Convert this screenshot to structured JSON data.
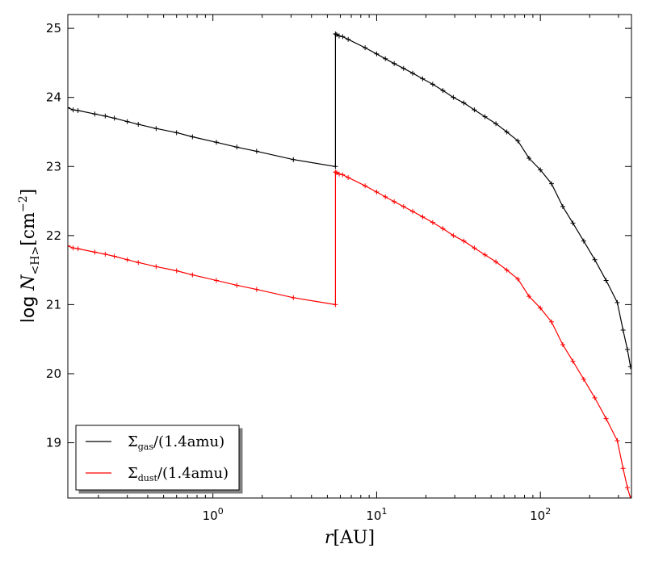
{
  "chart_data": {
    "type": "line",
    "x_scale": "log",
    "xlim": [
      0.13,
      360
    ],
    "ylim": [
      18.2,
      25.2
    ],
    "grid": false,
    "legend_position": "lower-left",
    "xlabel": {
      "symbol": "r",
      "unit": "[AU]"
    },
    "ylabel": {
      "prefix": "log",
      "symbol": "N",
      "subscript": "<H>",
      "unit": "[cm",
      "exponent": "−2",
      "close": "]"
    },
    "x_ticks": [
      {
        "value": 1,
        "base": "10",
        "exp": "0"
      },
      {
        "value": 10,
        "base": "10",
        "exp": "1"
      },
      {
        "value": 100,
        "base": "10",
        "exp": "2"
      }
    ],
    "y_ticks": [
      {
        "value": 19,
        "label": "19"
      },
      {
        "value": 20,
        "label": "20"
      },
      {
        "value": 21,
        "label": "21"
      },
      {
        "value": 22,
        "label": "22"
      },
      {
        "value": 23,
        "label": "23"
      },
      {
        "value": 24,
        "label": "24"
      },
      {
        "value": 25,
        "label": "25"
      }
    ],
    "series": [
      {
        "name": "Σgas/(1.4amu)",
        "legend": {
          "symbol": "Σ",
          "sub": "gas",
          "rest": "/(1.4amu)"
        },
        "color": "#000000",
        "x": [
          0.13,
          0.14,
          0.15,
          0.19,
          0.22,
          0.25,
          0.3,
          0.35,
          0.45,
          0.6,
          0.75,
          1.05,
          1.4,
          1.85,
          3.1,
          5.6,
          5.6,
          5.7,
          5.9,
          6.2,
          6.7,
          8.5,
          10,
          11.3,
          12.8,
          14.6,
          16.6,
          19.1,
          22,
          25.4,
          29.4,
          34.1,
          39.5,
          45.9,
          53.5,
          62.4,
          72.9,
          85.2,
          100,
          117,
          137,
          158,
          184,
          215,
          252,
          295,
          320,
          340,
          355
        ],
        "y": [
          23.85,
          23.82,
          23.81,
          23.76,
          23.73,
          23.7,
          23.65,
          23.61,
          23.55,
          23.49,
          23.43,
          23.35,
          23.28,
          23.22,
          23.1,
          23.0,
          24.92,
          24.91,
          24.89,
          24.88,
          24.84,
          24.72,
          24.63,
          24.56,
          24.49,
          24.42,
          24.35,
          24.27,
          24.19,
          24.1,
          24.0,
          23.92,
          23.82,
          23.72,
          23.62,
          23.5,
          23.37,
          23.12,
          22.95,
          22.75,
          22.42,
          22.18,
          21.92,
          21.65,
          21.35,
          21.03,
          20.63,
          20.35,
          20.1
        ]
      },
      {
        "name": "Σdust/(1.4amu)",
        "legend": {
          "symbol": "Σ",
          "sub": "dust",
          "rest": "/(1.4amu)"
        },
        "color": "#ff0000",
        "x": [
          0.13,
          0.14,
          0.15,
          0.19,
          0.22,
          0.25,
          0.3,
          0.35,
          0.45,
          0.6,
          0.75,
          1.05,
          1.4,
          1.85,
          3.1,
          5.6,
          5.6,
          5.7,
          5.9,
          6.2,
          6.7,
          8.5,
          10,
          11.3,
          12.8,
          14.6,
          16.6,
          19.1,
          22,
          25.4,
          29.4,
          34.1,
          39.5,
          45.9,
          53.5,
          62.4,
          72.9,
          85.2,
          100,
          117,
          137,
          158,
          184,
          215,
          252,
          295,
          320,
          340,
          355
        ],
        "y": [
          21.85,
          21.82,
          21.81,
          21.76,
          21.73,
          21.7,
          21.65,
          21.61,
          21.55,
          21.49,
          21.43,
          21.35,
          21.28,
          21.22,
          21.1,
          21.0,
          22.92,
          22.91,
          22.89,
          22.88,
          22.84,
          22.72,
          22.63,
          22.56,
          22.49,
          22.42,
          22.35,
          22.27,
          22.19,
          22.1,
          22.0,
          21.92,
          21.82,
          21.72,
          21.62,
          21.5,
          21.37,
          21.12,
          20.95,
          20.75,
          20.42,
          20.18,
          19.92,
          19.65,
          19.35,
          19.03,
          18.63,
          18.35,
          18.2
        ]
      }
    ]
  }
}
